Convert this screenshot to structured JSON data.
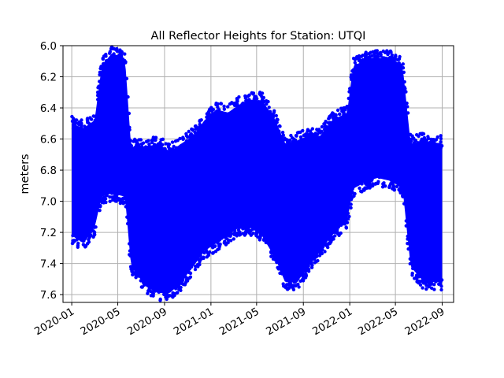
{
  "chart_data": {
    "type": "scatter",
    "title": "All Reflector Heights for Station: UTQI",
    "xlabel": "",
    "ylabel": "meters",
    "y_inverted": true,
    "ylim": [
      7.65,
      6.0
    ],
    "xlim": [
      "2019-12-09",
      "2022-10-01"
    ],
    "grid": true,
    "marker_color": "#0000ff",
    "x_ticks": [
      "2020-01",
      "2020-05",
      "2020-09",
      "2021-01",
      "2021-05",
      "2021-09",
      "2022-01",
      "2022-05",
      "2022-09"
    ],
    "y_ticks": [
      "6.0",
      "6.2",
      "6.4",
      "6.6",
      "6.8",
      "7.0",
      "7.2",
      "7.4",
      "7.6"
    ],
    "series": [
      {
        "values_description_free": true,
        "upper_envelope": [
          [
            "2020-01-01",
            6.47
          ],
          [
            "2020-02-01",
            6.5
          ],
          [
            "2020-03-01",
            6.45
          ],
          [
            "2020-03-20",
            6.1
          ],
          [
            "2020-04-15",
            6.02
          ],
          [
            "2020-05-20",
            6.05
          ],
          [
            "2020-06-05",
            6.62
          ],
          [
            "2020-07-15",
            6.62
          ],
          [
            "2020-08-15",
            6.6
          ],
          [
            "2020-09-15",
            6.65
          ],
          [
            "2020-10-15",
            6.6
          ],
          [
            "2020-11-15",
            6.55
          ],
          [
            "2020-12-15",
            6.45
          ],
          [
            "2021-01-15",
            6.38
          ],
          [
            "2021-02-15",
            6.4
          ],
          [
            "2021-03-15",
            6.35
          ],
          [
            "2021-04-15",
            6.32
          ],
          [
            "2021-05-15",
            6.32
          ],
          [
            "2021-06-20",
            6.45
          ],
          [
            "2021-07-15",
            6.6
          ],
          [
            "2021-08-15",
            6.58
          ],
          [
            "2021-09-15",
            6.55
          ],
          [
            "2021-10-15",
            6.55
          ],
          [
            "2021-11-15",
            6.45
          ],
          [
            "2021-12-25",
            6.4
          ],
          [
            "2022-01-10",
            6.1
          ],
          [
            "2022-02-15",
            6.06
          ],
          [
            "2022-03-15",
            6.05
          ],
          [
            "2022-04-20",
            6.05
          ],
          [
            "2022-05-20",
            6.1
          ],
          [
            "2022-06-10",
            6.6
          ],
          [
            "2022-07-15",
            6.58
          ],
          [
            "2022-09-01",
            6.6
          ]
        ],
        "lower_envelope": [
          [
            "2020-01-01",
            7.25
          ],
          [
            "2020-02-01",
            7.3
          ],
          [
            "2020-03-01",
            7.2
          ],
          [
            "2020-03-20",
            7.0
          ],
          [
            "2020-04-15",
            6.98
          ],
          [
            "2020-05-20",
            7.0
          ],
          [
            "2020-06-05",
            7.45
          ],
          [
            "2020-07-15",
            7.58
          ],
          [
            "2020-08-15",
            7.62
          ],
          [
            "2020-09-15",
            7.62
          ],
          [
            "2020-10-15",
            7.55
          ],
          [
            "2020-11-15",
            7.45
          ],
          [
            "2020-12-15",
            7.35
          ],
          [
            "2021-01-15",
            7.3
          ],
          [
            "2021-02-15",
            7.25
          ],
          [
            "2021-03-15",
            7.2
          ],
          [
            "2021-04-15",
            7.2
          ],
          [
            "2021-05-15",
            7.25
          ],
          [
            "2021-06-20",
            7.4
          ],
          [
            "2021-07-15",
            7.55
          ],
          [
            "2021-08-15",
            7.55
          ],
          [
            "2021-09-15",
            7.45
          ],
          [
            "2021-10-15",
            7.35
          ],
          [
            "2021-11-15",
            7.25
          ],
          [
            "2021-12-25",
            7.15
          ],
          [
            "2022-01-10",
            6.95
          ],
          [
            "2022-02-15",
            6.9
          ],
          [
            "2022-03-15",
            6.88
          ],
          [
            "2022-04-20",
            6.9
          ],
          [
            "2022-05-20",
            6.95
          ],
          [
            "2022-06-10",
            7.45
          ],
          [
            "2022-07-15",
            7.55
          ],
          [
            "2022-09-01",
            7.55
          ]
        ]
      }
    ]
  }
}
